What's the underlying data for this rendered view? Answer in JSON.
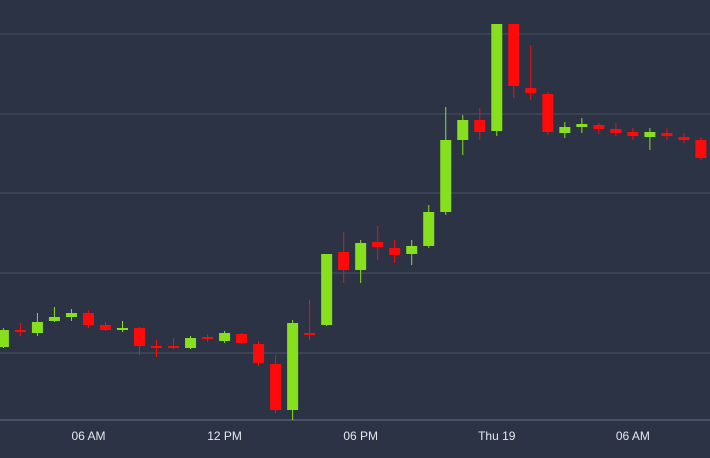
{
  "chart_data": {
    "type": "candlestick",
    "x": [
      2.25,
      3.0,
      3.75,
      4.5,
      5.25,
      6.0,
      6.75,
      7.5,
      8.25,
      9.0,
      9.75,
      10.5,
      11.25,
      12.0,
      12.75,
      13.5,
      14.25,
      15.0,
      15.75,
      16.5,
      17.25,
      18.0,
      18.75,
      19.5,
      20.25,
      21.0,
      21.75,
      22.5,
      23.25,
      24.0,
      24.75,
      25.5,
      26.25,
      27.0,
      27.75,
      28.5,
      29.25,
      30.0,
      30.75,
      31.5,
      32.25,
      33.0
    ],
    "open": [
      111,
      128,
      125,
      137,
      141,
      145,
      133,
      129,
      130,
      112,
      112,
      110,
      121,
      117,
      124,
      114,
      94,
      48,
      125,
      133,
      206,
      188,
      216,
      210,
      204,
      212,
      246,
      318,
      338,
      327,
      434,
      370,
      364,
      325,
      331,
      333,
      329,
      326,
      321,
      325,
      321,
      318
    ],
    "high": [
      130,
      135,
      145,
      151,
      149,
      148,
      136,
      137,
      131,
      118,
      120,
      122,
      124,
      127,
      125,
      117,
      103,
      138,
      158,
      204,
      226,
      218,
      232,
      218,
      218,
      253,
      351,
      343,
      350,
      434,
      434,
      413,
      366,
      336,
      340,
      335,
      335,
      330,
      330,
      330,
      325,
      321
    ],
    "low": [
      110,
      122,
      122,
      136,
      137,
      130,
      127,
      126,
      103,
      101,
      109,
      109,
      116,
      115,
      114,
      92,
      45,
      38,
      118,
      132,
      175,
      175,
      198,
      195,
      193,
      210,
      243,
      303,
      318,
      322,
      360,
      358,
      323,
      320,
      325,
      324,
      322,
      318,
      308,
      318,
      315,
      298
    ],
    "close": [
      128,
      126,
      136,
      141,
      145,
      133,
      128,
      130,
      112,
      111,
      111,
      120,
      120,
      125,
      115,
      95,
      48,
      135,
      124,
      204,
      188,
      215,
      211,
      203,
      212,
      246,
      318,
      338,
      326,
      434,
      372,
      365,
      326,
      331,
      334,
      329,
      325,
      322,
      326,
      322,
      318,
      300
    ],
    "up_color": "#86e01e",
    "down_color": "#ff0a0a",
    "xlim": [
      2.1,
      33.4
    ],
    "xticks": [
      {
        "value": 6,
        "label": "06 AM"
      },
      {
        "value": 12,
        "label": "12 PM"
      },
      {
        "value": 18,
        "label": "06 PM"
      },
      {
        "value": 24,
        "label": "Thu 19"
      },
      {
        "value": 30,
        "label": "06 AM"
      }
    ],
    "ylim": [
      0,
      458
    ],
    "yticks": [
      105,
      185,
      265,
      344,
      424
    ],
    "grid": true
  }
}
